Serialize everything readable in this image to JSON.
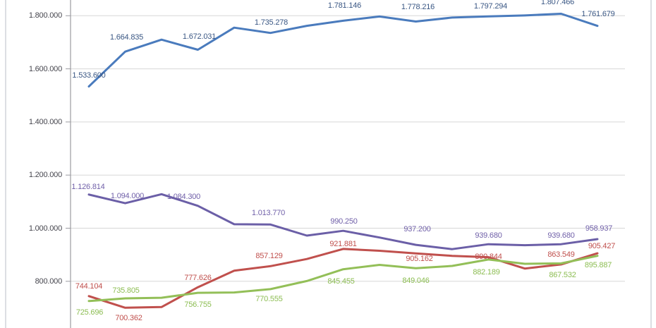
{
  "chart_data": {
    "type": "line",
    "title": "",
    "legend": "none",
    "grid": true,
    "number_format": "thousands-dot",
    "x_axis": {
      "points": 15,
      "labels_visible": false
    },
    "y_axis": {
      "ticks": [
        {
          "label": "1.800.000",
          "value": 1800000
        },
        {
          "label": "1.600.000",
          "value": 1600000
        },
        {
          "label": "1.400.000",
          "value": 1400000
        },
        {
          "label": "1.200.000",
          "value": 1200000
        },
        {
          "label": "1.000.000",
          "value": 1000000
        },
        {
          "label": "800.000",
          "value": 800000
        }
      ]
    },
    "series": [
      {
        "name": "blue-series",
        "line_color": "#4a7bbd",
        "label_color": "#3a5784",
        "values": [
          1533600,
          1664835,
          1710000,
          1672031,
          1755000,
          1735278,
          1762000,
          1781146,
          1797000,
          1778216,
          1793000,
          1797294,
          1801000,
          1807466,
          1761679
        ],
        "estimated_indices": [
          2,
          4,
          6,
          8,
          10,
          12
        ],
        "data_labels": [
          {
            "i": 0,
            "text": "1.533.600",
            "dx": 0,
            "dy": -22
          },
          {
            "i": 1,
            "text": "1.664.835",
            "dx": 2,
            "dy": -26
          },
          {
            "i": 3,
            "text": "1.672.031",
            "dx": 2,
            "dy": -24
          },
          {
            "i": 5,
            "text": "1.735.278",
            "dx": 1,
            "dy": -21
          },
          {
            "i": 7,
            "text": "1.781.146",
            "dx": 2,
            "dy": -27
          },
          {
            "i": 9,
            "text": "1.778.216",
            "dx": 3,
            "dy": -27
          },
          {
            "i": 11,
            "text": "1.797.294",
            "dx": 3,
            "dy": -20
          },
          {
            "i": 13,
            "text": "1.807.466",
            "dx": -5,
            "dy": -23
          },
          {
            "i": 14,
            "text": "1.761.679",
            "dx": 1,
            "dy": -23
          }
        ]
      },
      {
        "name": "purple-series",
        "line_color": "#6b5fa7",
        "label_color": "#7161a9",
        "values": [
          1126814,
          1094000,
          1128000,
          1084300,
          1015000,
          1013770,
          972000,
          990250,
          965000,
          937200,
          921000,
          939680,
          936000,
          939680,
          958937
        ],
        "estimated_indices": [
          2,
          4,
          6,
          8,
          10,
          12
        ],
        "data_labels": [
          {
            "i": 0,
            "text": "1.126.814",
            "dx": -1,
            "dy": -17
          },
          {
            "i": 1,
            "text": "1.094.000",
            "dx": 3,
            "dy": -16
          },
          {
            "i": 3,
            "text": "1.084.300",
            "dx": -20,
            "dy": -19
          },
          {
            "i": 5,
            "text": "1.013.770",
            "dx": -3,
            "dy": -22
          },
          {
            "i": 7,
            "text": "990.250",
            "dx": 1,
            "dy": -19
          },
          {
            "i": 9,
            "text": "937.200",
            "dx": 2,
            "dy": -28
          },
          {
            "i": 11,
            "text": "939.680",
            "dx": 0,
            "dy": -18
          },
          {
            "i": 13,
            "text": "939.680",
            "dx": 0,
            "dy": -18
          },
          {
            "i": 14,
            "text": "958.937",
            "dx": 2,
            "dy": -21
          }
        ]
      },
      {
        "name": "red-series",
        "line_color": "#c0504d",
        "label_color": "#c0504d",
        "values": [
          744104,
          700362,
          703000,
          777626,
          840000,
          857129,
          884000,
          921881,
          915000,
          905162,
          896000,
          890844,
          848000,
          863549,
          905427
        ],
        "estimated_indices": [
          2,
          4,
          6,
          8,
          10,
          12
        ],
        "data_labels": [
          {
            "i": 0,
            "text": "744.104",
            "dx": 0,
            "dy": -20
          },
          {
            "i": 1,
            "text": "700.362",
            "dx": 5,
            "dy": 9
          },
          {
            "i": 3,
            "text": "777.626",
            "dx": 0,
            "dy": -19
          },
          {
            "i": 5,
            "text": "857.129",
            "dx": -2,
            "dy": -20
          },
          {
            "i": 7,
            "text": "921.881",
            "dx": 0,
            "dy": -13
          },
          {
            "i": 9,
            "text": "905.162",
            "dx": 5,
            "dy": 2
          },
          {
            "i": 11,
            "text": "890.844",
            "dx": 0,
            "dy": -7
          },
          {
            "i": 13,
            "text": "863.549",
            "dx": 0,
            "dy": -20
          },
          {
            "i": 14,
            "text": "905.427",
            "dx": 6,
            "dy": -16
          }
        ]
      },
      {
        "name": "green-series",
        "line_color": "#93bf58",
        "label_color": "#8cbd52",
        "values": [
          725696,
          735805,
          738000,
          756755,
          758000,
          770555,
          801000,
          845455,
          862000,
          849046,
          858000,
          882189,
          866000,
          867532,
          895887
        ],
        "estimated_indices": [
          2,
          4,
          6,
          8,
          10,
          12
        ],
        "data_labels": [
          {
            "i": 0,
            "text": "725.696",
            "dx": 1,
            "dy": 10
          },
          {
            "i": 1,
            "text": "735.805",
            "dx": 1,
            "dy": -17
          },
          {
            "i": 3,
            "text": "756.755",
            "dx": 0,
            "dy": 11
          },
          {
            "i": 5,
            "text": "770.555",
            "dx": -2,
            "dy": 8
          },
          {
            "i": 7,
            "text": "845.455",
            "dx": -3,
            "dy": 11
          },
          {
            "i": 9,
            "text": "849.046",
            "dx": 0,
            "dy": 12
          },
          {
            "i": 11,
            "text": "882.189",
            "dx": -3,
            "dy": 12
          },
          {
            "i": 13,
            "text": "867.532",
            "dx": 2,
            "dy": 11
          },
          {
            "i": 14,
            "text": "895.887",
            "dx": 1,
            "dy": 7
          }
        ]
      }
    ]
  },
  "colors": {
    "background": "#ffffff",
    "gridline": "#d7d7d7",
    "axis_line": "#9b9ba1",
    "axis_label": "#46464e",
    "page_border": "#dcdee3"
  }
}
